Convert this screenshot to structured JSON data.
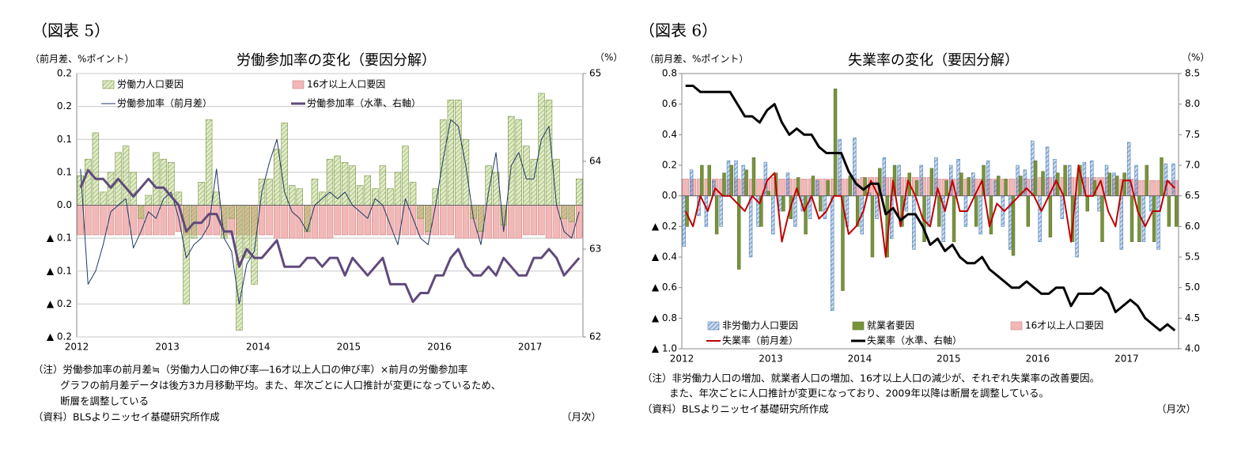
{
  "chart_data": [
    {
      "type": "bar_line",
      "panel_label": "（図表 5）",
      "title": "労働参加率の変化（要因分解）",
      "y_unit": "（前月差、%ポイント）",
      "y2_unit": "（%）",
      "x_unit": "（月次）",
      "notes": [
        "（注）労働参加率の前月差≒（労働力人口の伸び率―16才以上人口の伸び率）×前月の労働参加率",
        "グラフの前月差データは後方3カ月移動平均。また、年次ごとに人口推計が変更になっているため、",
        "断層を調整している"
      ],
      "source": "（資料）BLSよりニッセイ基礎研究所作成",
      "grid": true,
      "categories": [
        "2012",
        null,
        null,
        null,
        null,
        null,
        null,
        null,
        null,
        null,
        null,
        null,
        "2013",
        null,
        null,
        null,
        null,
        null,
        null,
        null,
        null,
        null,
        null,
        null,
        "2014",
        null,
        null,
        null,
        null,
        null,
        null,
        null,
        null,
        null,
        null,
        null,
        "2015",
        null,
        null,
        null,
        null,
        null,
        null,
        null,
        null,
        null,
        null,
        null,
        "2016",
        null,
        null,
        null,
        null,
        null,
        null,
        null,
        null,
        null,
        null,
        null,
        "2017",
        null,
        null,
        null,
        null,
        null,
        null
      ],
      "ylim": [
        -0.2,
        0.2
      ],
      "yticks": [
        {
          "value": 0.2,
          "label": "0.2"
        },
        {
          "value": 0.15,
          "label": "0.2"
        },
        {
          "value": 0.1,
          "label": "0.1"
        },
        {
          "value": 0.05,
          "label": "0.1"
        },
        {
          "value": 0,
          "label": "0.0"
        },
        {
          "value": -0.05,
          "label": "▲ 0.1"
        },
        {
          "value": -0.1,
          "label": "▲ 0.1"
        },
        {
          "value": -0.15,
          "label": "▲ 0.2"
        },
        {
          "value": -0.2,
          "label": "▲ 0.2"
        }
      ],
      "y2lim": [
        62,
        65
      ],
      "y2ticks": [
        62,
        63,
        64,
        65
      ],
      "series": [
        {
          "name": "労働力人口要因",
          "kind": "bar",
          "color": "#9bbb59",
          "hatch": true,
          "edge_color": "#76923c",
          "values": [
            0.045,
            0.07,
            0.11,
            0.02,
            0.05,
            0.08,
            0.09,
            0.05,
            -0.02,
            0.015,
            0.08,
            0.07,
            0.065,
            0.02,
            -0.15,
            -0.05,
            0.035,
            0.13,
            0.02,
            -0.05,
            -0.02,
            -0.19,
            -0.08,
            -0.12,
            0.04,
            0.04,
            0.085,
            0.125,
            0.03,
            0.025,
            -0.04,
            0.04,
            0.02,
            0.07,
            0.075,
            0.065,
            0.06,
            0.03,
            0.045,
            0.025,
            0.06,
            0.025,
            0.05,
            0.09,
            0.035,
            -0.02,
            -0.04,
            0.025,
            0.13,
            0.16,
            0.16,
            0.1,
            -0.02,
            -0.04,
            0.06,
            0.05,
            -0.03,
            0.135,
            0.13,
            0.09,
            0.07,
            0.17,
            0.16,
            0.07,
            -0.02,
            -0.025,
            0.04
          ]
        },
        {
          "name": "16才以上人口要因",
          "kind": "bar",
          "color": "#f2b8b8",
          "hatch": false,
          "edge_color": "#d08080",
          "values": [
            -0.045,
            -0.045,
            -0.045,
            -0.045,
            -0.045,
            -0.045,
            -0.045,
            -0.045,
            -0.045,
            -0.045,
            -0.045,
            -0.045,
            -0.045,
            -0.04,
            -0.045,
            -0.045,
            -0.045,
            -0.045,
            -0.045,
            -0.045,
            -0.045,
            -0.045,
            -0.045,
            -0.045,
            -0.045,
            -0.045,
            -0.05,
            -0.05,
            -0.05,
            -0.05,
            -0.05,
            -0.05,
            -0.05,
            -0.05,
            -0.045,
            -0.045,
            -0.045,
            -0.045,
            -0.045,
            -0.045,
            -0.045,
            -0.045,
            -0.045,
            -0.045,
            -0.045,
            -0.045,
            -0.045,
            -0.045,
            -0.045,
            -0.045,
            -0.05,
            -0.05,
            -0.05,
            -0.05,
            -0.05,
            -0.05,
            -0.05,
            -0.05,
            -0.05,
            -0.045,
            -0.045,
            -0.045,
            -0.05,
            -0.05,
            -0.05,
            -0.05,
            -0.05
          ]
        },
        {
          "name": "労働参加率（前月差）",
          "kind": "line",
          "color": "#1f3864",
          "line_width": 1,
          "values": [
            0.055,
            -0.12,
            -0.1,
            -0.06,
            -0.01,
            0.0,
            0.01,
            -0.065,
            -0.04,
            -0.01,
            -0.02,
            0.01,
            0.02,
            -0.02,
            -0.08,
            -0.06,
            -0.05,
            -0.03,
            0.055,
            -0.05,
            -0.07,
            -0.15,
            -0.09,
            -0.07,
            0.02,
            0.065,
            0.1,
            0.02,
            -0.01,
            -0.02,
            -0.04,
            0.0,
            0.01,
            0.02,
            0.01,
            0.02,
            0.0,
            -0.01,
            -0.02,
            0.01,
            0.0,
            -0.03,
            -0.06,
            0.01,
            -0.02,
            -0.05,
            -0.06,
            0.0,
            0.07,
            0.13,
            0.12,
            0.06,
            -0.02,
            -0.06,
            0.02,
            0.08,
            -0.04,
            0.06,
            0.08,
            0.04,
            0.04,
            0.1,
            0.12,
            0.0,
            -0.04,
            -0.05,
            -0.01
          ]
        },
        {
          "name": "労働参加率（水準、右軸）",
          "kind": "line",
          "axis": "y2",
          "color": "#604a7b",
          "line_width": 3,
          "values": [
            63.7,
            63.9,
            63.8,
            63.8,
            63.7,
            63.8,
            63.7,
            63.6,
            63.7,
            63.8,
            63.7,
            63.7,
            63.6,
            63.5,
            63.2,
            63.3,
            63.3,
            63.4,
            63.4,
            63.2,
            63.2,
            62.8,
            63.0,
            62.9,
            62.9,
            63.0,
            63.1,
            62.8,
            62.8,
            62.8,
            62.9,
            62.9,
            62.8,
            62.9,
            62.9,
            62.7,
            62.9,
            62.8,
            62.7,
            62.8,
            62.9,
            62.6,
            62.6,
            62.6,
            62.4,
            62.5,
            62.5,
            62.7,
            62.7,
            62.9,
            63.0,
            62.8,
            62.7,
            62.7,
            62.8,
            62.7,
            62.9,
            62.8,
            62.7,
            62.7,
            62.9,
            62.9,
            63.0,
            62.9,
            62.7,
            62.8,
            62.9
          ]
        }
      ]
    },
    {
      "type": "bar_line",
      "panel_label": "（図表 6）",
      "title": "失業率の変化（要因分解）",
      "y_unit": "（前月差、%ポイント）",
      "y2_unit": "（%）",
      "x_unit": "（月次）",
      "notes": [
        "（注）非労働力人口の増加、就業者人口の増加、16才以上人口の減少が、それぞれ失業率の改善要因。",
        "また、年次ごとに人口推計が変更になっており、2009年以降は断層を調整している。"
      ],
      "source": "（資料）BLSよりニッセイ基礎研究所作成",
      "grid": false,
      "categories": [
        "2012",
        null,
        null,
        null,
        null,
        null,
        null,
        null,
        null,
        null,
        null,
        null,
        "2013",
        null,
        null,
        null,
        null,
        null,
        null,
        null,
        null,
        null,
        null,
        null,
        "2014",
        null,
        null,
        null,
        null,
        null,
        null,
        null,
        null,
        null,
        null,
        null,
        "2015",
        null,
        null,
        null,
        null,
        null,
        null,
        null,
        null,
        null,
        null,
        null,
        "2016",
        null,
        null,
        null,
        null,
        null,
        null,
        null,
        null,
        null,
        null,
        null,
        "2017",
        null,
        null,
        null,
        null,
        null,
        null
      ],
      "ylim": [
        -1.0,
        0.8
      ],
      "yticks": [
        0.8,
        0.6,
        0.4,
        0.2,
        {
          "value": 0,
          "label": "0.0"
        },
        {
          "value": -0.2,
          "label": "▲ 0.2"
        },
        {
          "value": -0.4,
          "label": "▲ 0.4"
        },
        {
          "value": -0.6,
          "label": "▲ 0.6"
        },
        {
          "value": -0.8,
          "label": "▲ 0.8"
        },
        {
          "value": -1.0,
          "label": "▲ 1.0"
        }
      ],
      "y2lim": [
        4.0,
        8.5
      ],
      "y2ticks": [
        8.5,
        {
          "value": 8,
          "label": "8.0"
        },
        7.5,
        {
          "value": 7,
          "label": "7.0"
        },
        6.5,
        {
          "value": 6,
          "label": "6.0"
        },
        5.5,
        {
          "value": 5,
          "label": "5.0"
        },
        4.5,
        {
          "value": 4,
          "label": "4.0"
        }
      ],
      "series": [
        {
          "name": "非労働力人口要因",
          "kind": "bar",
          "color": "#4f81bd",
          "hatch": true,
          "edge_color": "#4f81bd",
          "values": [
            -0.33,
            0.17,
            -0.13,
            -0.2,
            0.1,
            -0.2,
            0.23,
            0.23,
            0.2,
            -0.4,
            -0.2,
            0.22,
            -0.25,
            -0.1,
            0.15,
            -0.2,
            -0.1,
            -0.15,
            0.1,
            -0.15,
            -0.75,
            0.37,
            -0.2,
            0.38,
            -0.25,
            0.02,
            -0.15,
            0.25,
            -0.28,
            0.2,
            -0.1,
            -0.35,
            0.2,
            -0.2,
            0.25,
            -0.3,
            0.2,
            0.24,
            -0.2,
            0.15,
            -0.25,
            0.23,
            0.1,
            -0.2,
            -0.35,
            0.2,
            0.17,
            0.36,
            -0.3,
            0.32,
            0.24,
            -0.15,
            0.2,
            -0.4,
            0.22,
            0.23,
            -0.1,
            0.2,
            0.15,
            -0.35,
            0.35,
            0.2,
            -0.3,
            -0.1,
            -0.35,
            0.21,
            0.21
          ]
        },
        {
          "name": "就業者要因",
          "kind": "bar",
          "color": "#77933c",
          "hatch": false,
          "edge_color": "#5f7530",
          "values": [
            -0.2,
            0.0,
            0.2,
            0.2,
            -0.25,
            0.15,
            0.2,
            -0.48,
            0.17,
            0.25,
            -0.2,
            0.03,
            0.15,
            -0.1,
            -0.15,
            0.12,
            -0.25,
            0.13,
            -0.1,
            0.1,
            0.7,
            -0.62,
            0.13,
            -0.2,
            0.12,
            -0.4,
            0.18,
            -0.4,
            0.2,
            -0.2,
            0.15,
            0.1,
            -0.3,
            0.18,
            -0.2,
            0.1,
            -0.3,
            0.15,
            0.12,
            -0.2,
            0.2,
            -0.25,
            0.13,
            0.11,
            -0.39,
            0.13,
            -0.2,
            0.23,
            0.16,
            -0.27,
            0.15,
            0.2,
            -0.3,
            0.2,
            -0.1,
            0.1,
            -0.3,
            0.15,
            0.13,
            0.15,
            -0.3,
            -0.3,
            0.2,
            -0.3,
            0.25,
            -0.2,
            -0.2
          ]
        },
        {
          "name": "16才以上人口要因",
          "kind": "bar",
          "color": "#f2b8b8",
          "hatch": false,
          "edge_color": "#d08080",
          "values": [
            0.11,
            0.11,
            0.11,
            0.11,
            0.11,
            0.11,
            0.11,
            0.11,
            0.11,
            0.11,
            0.11,
            0.11,
            0.12,
            0.11,
            0.11,
            0.11,
            0.11,
            0.11,
            0.11,
            0.11,
            0.11,
            0.11,
            0.11,
            0.11,
            0.12,
            0.12,
            0.12,
            0.12,
            0.12,
            0.12,
            0.12,
            0.12,
            0.12,
            0.12,
            0.11,
            0.11,
            0.11,
            0.11,
            0.11,
            0.11,
            0.11,
            0.11,
            0.11,
            0.11,
            0.11,
            0.11,
            0.11,
            0.11,
            0.12,
            0.12,
            0.12,
            0.12,
            0.12,
            0.12,
            0.12,
            0.12,
            0.12,
            0.12,
            0.11,
            0.11,
            0.11,
            0.1,
            0.1,
            0.1,
            0.1,
            0.1,
            0.1
          ]
        },
        {
          "name": "失業率（前月差）",
          "kind": "line",
          "color": "#c00000",
          "line_width": 2,
          "values": [
            -0.1,
            -0.2,
            0.0,
            -0.1,
            0.05,
            0.0,
            0.0,
            -0.05,
            -0.1,
            0.0,
            -0.05,
            0.1,
            0.15,
            -0.3,
            -0.1,
            0.05,
            -0.1,
            0.0,
            -0.15,
            -0.1,
            0.0,
            0.0,
            -0.25,
            -0.2,
            -0.1,
            0.1,
            0.0,
            -0.4,
            0.1,
            -0.2,
            0.1,
            0.0,
            -0.15,
            -0.2,
            0.05,
            -0.1,
            0.1,
            -0.1,
            -0.1,
            0.0,
            0.1,
            -0.2,
            -0.05,
            -0.1,
            -0.05,
            0.0,
            0.05,
            0.0,
            -0.1,
            0.0,
            0.1,
            0.0,
            -0.3,
            0.2,
            0.0,
            0.0,
            0.1,
            -0.1,
            -0.2,
            0.1,
            0.1,
            -0.1,
            -0.2,
            -0.1,
            -0.1,
            0.1,
            0.05
          ]
        },
        {
          "name": "失業率（水準、右軸）",
          "kind": "line",
          "axis": "y2",
          "color": "#000000",
          "line_width": 3,
          "values": [
            8.3,
            8.3,
            8.2,
            8.2,
            8.2,
            8.2,
            8.2,
            8.0,
            7.8,
            7.8,
            7.7,
            7.9,
            8.0,
            7.7,
            7.5,
            7.6,
            7.5,
            7.5,
            7.3,
            7.2,
            7.2,
            7.2,
            6.9,
            6.7,
            6.6,
            6.7,
            6.7,
            6.2,
            6.3,
            6.1,
            6.2,
            6.2,
            6.0,
            5.7,
            5.8,
            5.6,
            5.7,
            5.5,
            5.4,
            5.4,
            5.5,
            5.3,
            5.2,
            5.1,
            5.0,
            5.0,
            5.1,
            5.0,
            4.9,
            4.9,
            5.0,
            5.0,
            4.7,
            4.9,
            4.9,
            4.9,
            5.0,
            4.9,
            4.6,
            4.7,
            4.8,
            4.7,
            4.5,
            4.4,
            4.3,
            4.4,
            4.3
          ]
        }
      ]
    }
  ]
}
